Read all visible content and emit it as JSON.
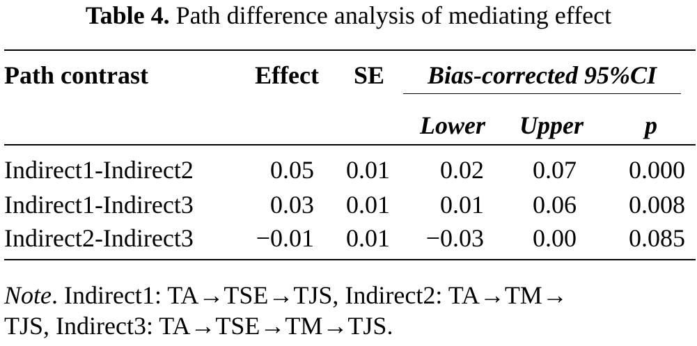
{
  "caption": {
    "label": "Table 4.",
    "text": "Path difference analysis of mediating effect"
  },
  "table": {
    "headers": {
      "path_contrast": "Path contrast",
      "effect": "Effect",
      "se": "SE",
      "ci_group": "Bias-corrected 95%CI",
      "lower": "Lower",
      "upper": "Upper",
      "p": "p"
    },
    "rows": [
      {
        "path": "Indirect1-Indirect2",
        "effect": "0.05",
        "se": "0.01",
        "lower": "0.02",
        "upper": "0.07",
        "p": "0.000"
      },
      {
        "path": "Indirect1-Indirect3",
        "effect": "0.03",
        "se": "0.01",
        "lower": "0.01",
        "upper": "0.06",
        "p": "0.008"
      },
      {
        "path": "Indirect2-Indirect3",
        "effect": "−0.01",
        "se": "0.01",
        "lower": "−0.03",
        "upper": "0.00",
        "p": "0.085"
      }
    ]
  },
  "note": {
    "label": "Note",
    "line1": ". Indirect1: TA→TSE→TJS, Indirect2: TA→TM→",
    "line2": "TJS, Indirect3: TA→TSE→TM→TJS."
  }
}
